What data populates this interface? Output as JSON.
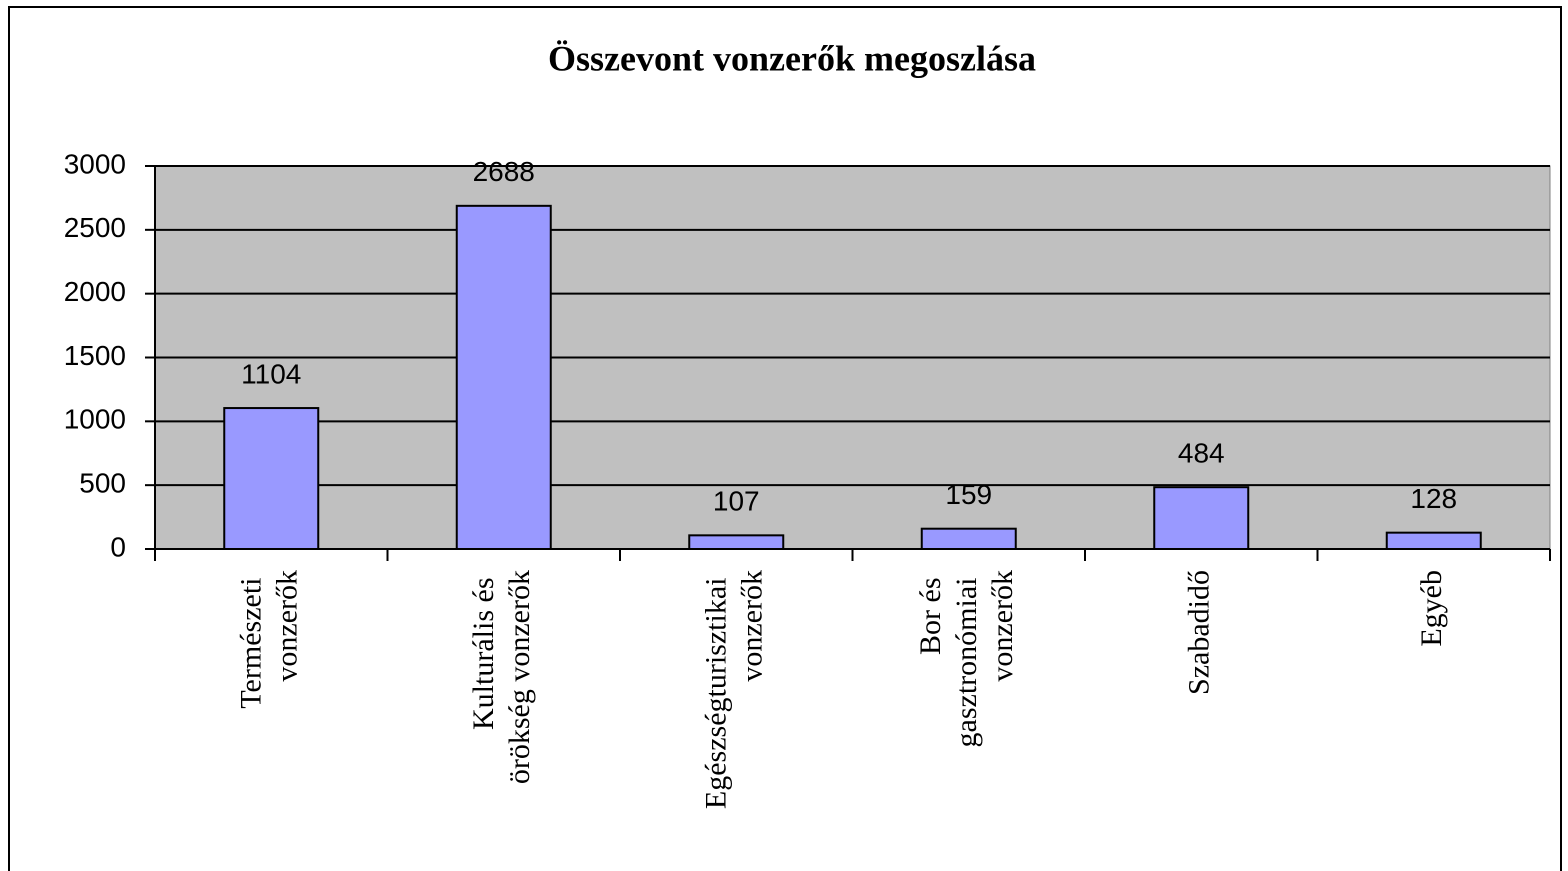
{
  "chart_data": {
    "type": "bar",
    "title": "Összevont vonzerők megoszlása",
    "categories": [
      "Természeti vonzerők",
      "Kulturális és örökség vonzerők",
      "Egészségturisztikai vonzerők",
      "Bor és gasztronómiai vonzerők",
      "Szabadidő",
      "Egyéb"
    ],
    "values": [
      1104,
      2688,
      107,
      159,
      484,
      128
    ],
    "color": "#9999ff",
    "plot_background": "#c0c0c0",
    "ylim": [
      0,
      3000
    ],
    "yticks": [
      0,
      500,
      1000,
      1500,
      2000,
      2500,
      3000
    ],
    "grid": true
  }
}
